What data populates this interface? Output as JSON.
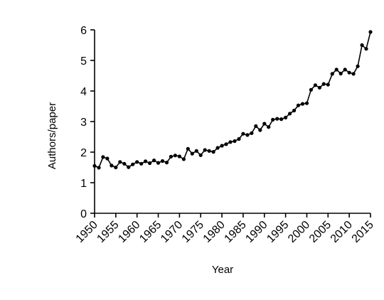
{
  "chart_data": {
    "type": "line",
    "title": "",
    "xlabel": "Year",
    "ylabel": "Authors/paper",
    "xlim": [
      1950,
      2015
    ],
    "ylim": [
      0,
      6
    ],
    "grid": false,
    "legend": "none",
    "x_ticks": [
      "1950",
      "1955",
      "1960",
      "1965",
      "1970",
      "1975",
      "1980",
      "1985",
      "1990",
      "1995",
      "2000",
      "2005",
      "2010",
      "2015"
    ],
    "y_ticks": [
      "0",
      "1",
      "2",
      "3",
      "4",
      "5",
      "6"
    ],
    "series": [
      {
        "x": [
          1950,
          1951,
          1952,
          1953,
          1954,
          1955,
          1956,
          1957,
          1958,
          1959,
          1960,
          1961,
          1962,
          1963,
          1964,
          1965,
          1966,
          1967,
          1968,
          1969,
          1970,
          1971,
          1972,
          1973,
          1974,
          1975,
          1976,
          1977,
          1978,
          1979,
          1980,
          1981,
          1982,
          1983,
          1984,
          1985,
          1986,
          1987,
          1988,
          1989,
          1990,
          1991,
          1992,
          1993,
          1994,
          1995,
          1996,
          1997,
          1998,
          1999,
          2000,
          2001,
          2002,
          2003,
          2004,
          2005,
          2006,
          2007,
          2008,
          2009,
          2010,
          2011,
          2012,
          2013,
          2014,
          2015
        ],
        "y": [
          1.55,
          1.49,
          1.84,
          1.79,
          1.56,
          1.5,
          1.68,
          1.62,
          1.51,
          1.6,
          1.68,
          1.62,
          1.7,
          1.64,
          1.73,
          1.65,
          1.71,
          1.66,
          1.85,
          1.89,
          1.86,
          1.77,
          2.11,
          1.95,
          2.04,
          1.9,
          2.07,
          2.04,
          2.01,
          2.14,
          2.21,
          2.26,
          2.33,
          2.36,
          2.43,
          2.6,
          2.56,
          2.62,
          2.85,
          2.72,
          2.93,
          2.82,
          3.06,
          3.09,
          3.08,
          3.13,
          3.26,
          3.36,
          3.53,
          3.58,
          3.6,
          4.04,
          4.19,
          4.11,
          4.23,
          4.21,
          4.56,
          4.7,
          4.57,
          4.7,
          4.6,
          4.56,
          4.81,
          5.5,
          5.38,
          5.93
        ]
      }
    ]
  }
}
